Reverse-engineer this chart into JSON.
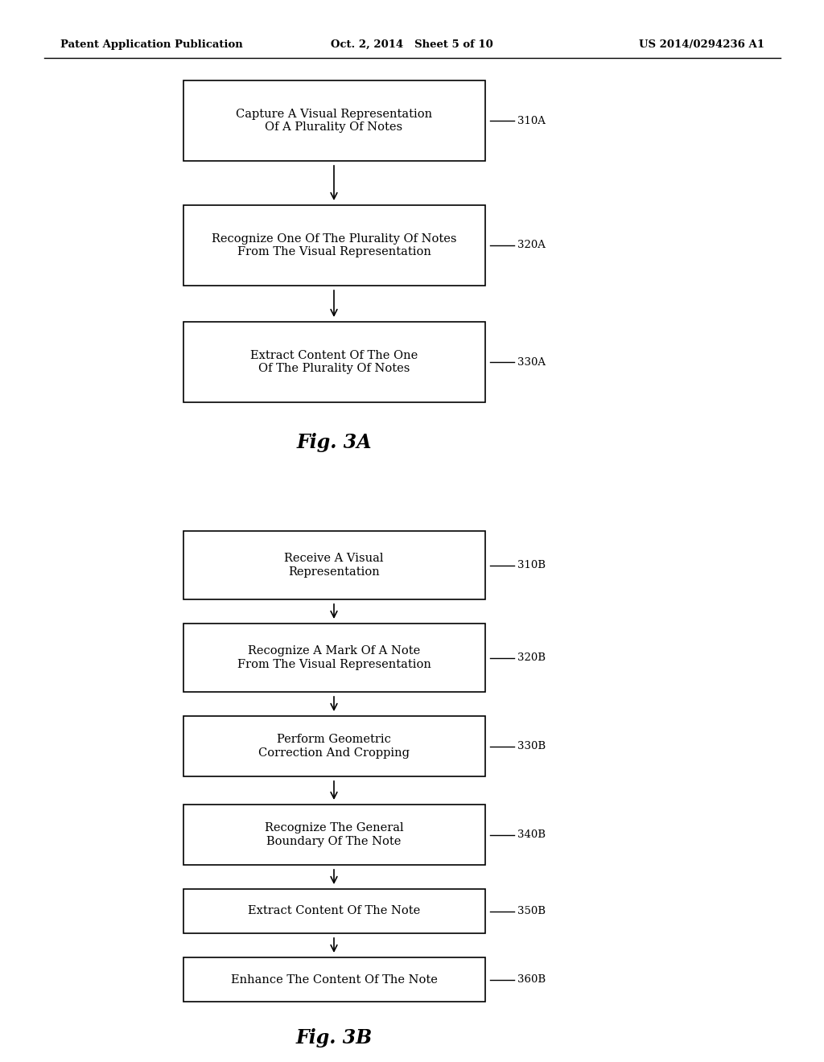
{
  "bg_color": "#ffffff",
  "header_left": "Patent Application Publication",
  "header_center": "Oct. 2, 2014   Sheet 5 of 10",
  "header_right": "US 2014/0294236 A1",
  "text_color": "#000000",
  "box_edge_color": "#000000",
  "box_face_color": "#ffffff",
  "fig3a_title": "Fig. 3A",
  "fig3b_title": "Fig. 3B",
  "boxes_a": [
    {
      "label": "Capture A Visual Representation\nOf A Plurality Of Notes",
      "lid": "310A"
    },
    {
      "label": "Recognize One Of The Plurality Of Notes\nFrom The Visual Representation",
      "lid": "320A"
    },
    {
      "label": "Extract Content Of The One\nOf The Plurality Of Notes",
      "lid": "330A"
    }
  ],
  "boxes_b": [
    {
      "label": "Receive A Visual\nRepresentation",
      "lid": "310B"
    },
    {
      "label": "Recognize A Mark Of A Note\nFrom The Visual Representation",
      "lid": "320B"
    },
    {
      "label": "Perform Geometric\nCorrection And Cropping",
      "lid": "330B"
    },
    {
      "label": "Recognize The General\nBoundary Of The Note",
      "lid": "340B"
    },
    {
      "label": "Extract Content Of The Note",
      "lid": "350B"
    },
    {
      "label": "Enhance The Content Of The Note",
      "lid": "360B"
    }
  ]
}
